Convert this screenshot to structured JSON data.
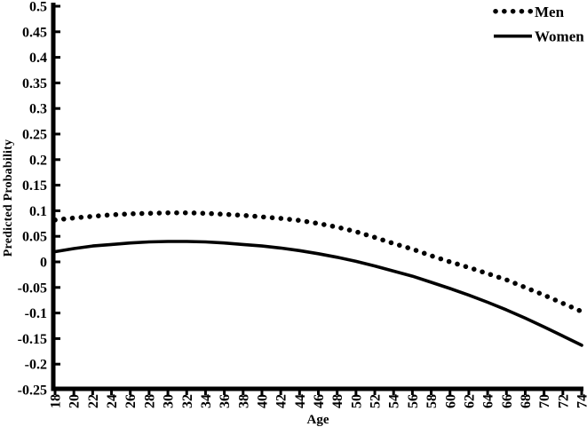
{
  "chart_data": {
    "type": "line",
    "xlabel": "Age",
    "ylabel": "Predicted Probability",
    "xlim": [
      18,
      74
    ],
    "ylim": [
      -0.25,
      0.5
    ],
    "grid": false,
    "legend_position": "top-right",
    "background_color": "#ffffff",
    "axis_color": "#000000",
    "x_tick_labels": [
      "18",
      "20",
      "22",
      "24",
      "26",
      "28",
      "30",
      "32",
      "34",
      "36",
      "38",
      "40",
      "42",
      "44",
      "46",
      "48",
      "50",
      "52",
      "54",
      "56",
      "58",
      "60",
      "62",
      "64",
      "66",
      "68",
      "70",
      "72",
      "74"
    ],
    "y_tick_labels": [
      "0.5",
      "0.45",
      "0.4",
      "0.35",
      "0.3",
      "0.25",
      "0.2",
      "0.15",
      "0.1",
      "0.05",
      "0",
      "-0.05",
      "-0.1",
      "-0.15",
      "-0.2",
      "-0.25"
    ],
    "x": [
      18,
      20,
      22,
      24,
      26,
      28,
      30,
      32,
      34,
      36,
      38,
      40,
      42,
      44,
      46,
      48,
      50,
      52,
      54,
      56,
      58,
      60,
      62,
      64,
      66,
      68,
      70,
      72,
      74
    ],
    "series": [
      {
        "name": "Men",
        "style": "dotted",
        "color": "#000000",
        "values": [
          0.082,
          0.086,
          0.089,
          0.092,
          0.094,
          0.095,
          0.096,
          0.096,
          0.095,
          0.093,
          0.091,
          0.088,
          0.085,
          0.081,
          0.075,
          0.068,
          0.059,
          0.048,
          0.036,
          0.025,
          0.012,
          0.0,
          -0.011,
          -0.023,
          -0.035,
          -0.05,
          -0.065,
          -0.081,
          -0.097
        ]
      },
      {
        "name": "Women",
        "style": "solid",
        "color": "#000000",
        "values": [
          0.02,
          0.026,
          0.031,
          0.034,
          0.037,
          0.039,
          0.04,
          0.04,
          0.039,
          0.037,
          0.034,
          0.031,
          0.027,
          0.022,
          0.016,
          0.009,
          0.001,
          -0.008,
          -0.018,
          -0.028,
          -0.04,
          -0.052,
          -0.065,
          -0.079,
          -0.094,
          -0.11,
          -0.127,
          -0.145,
          -0.163
        ]
      }
    ]
  }
}
